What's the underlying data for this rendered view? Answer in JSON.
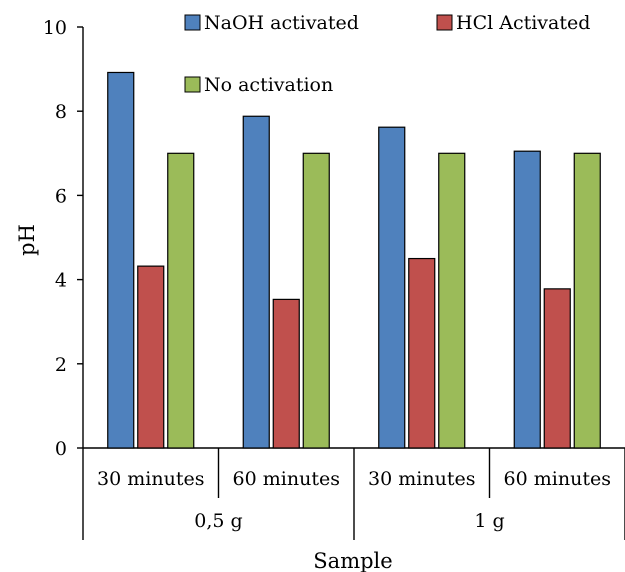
{
  "chart_data": {
    "type": "bar",
    "categories": [
      "30 minutes",
      "60 minutes",
      "30 minutes",
      "60 minutes"
    ],
    "groups": [
      {
        "label": "0,5 g",
        "categories": [
          0,
          1
        ]
      },
      {
        "label": "1 g",
        "categories": [
          2,
          3
        ]
      }
    ],
    "series": [
      {
        "name": "NaOH activated",
        "color": "#4F81BD",
        "values": [
          8.92,
          7.88,
          7.62,
          7.05
        ]
      },
      {
        "name": "HCl Activated",
        "color": "#C0504D",
        "values": [
          4.32,
          3.53,
          4.5,
          3.78
        ]
      },
      {
        "name": "No activation",
        "color": "#9BBB59",
        "values": [
          7.0,
          7.0,
          7.0,
          7.0
        ]
      }
    ],
    "ylabel": "pH",
    "xlabel": "Sample",
    "ylim": [
      0,
      10
    ],
    "yticks": [
      "0",
      "2",
      "4",
      "6",
      "8",
      "10"
    ],
    "grid": false,
    "legend_position": "top"
  }
}
